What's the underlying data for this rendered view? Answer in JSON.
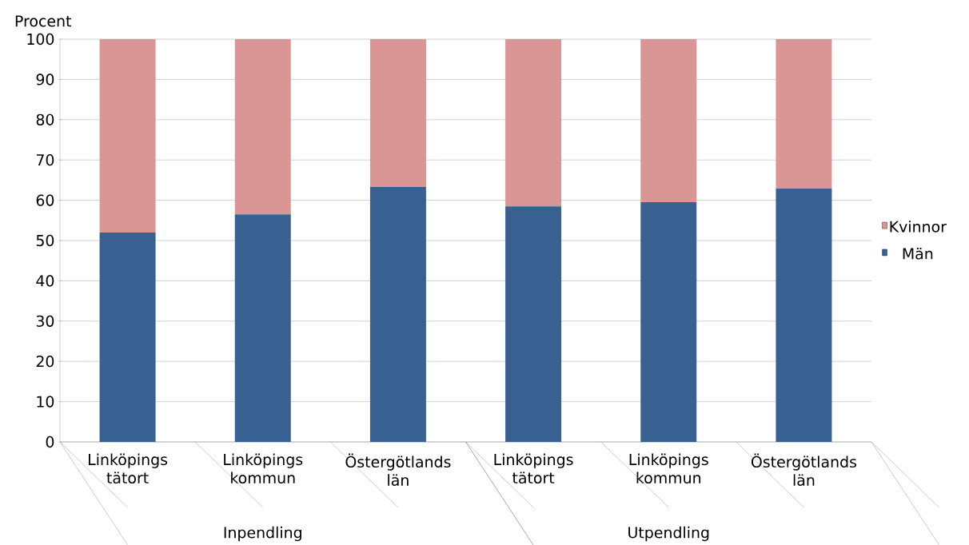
{
  "chart_data": {
    "type": "bar",
    "stacked": true,
    "ylabel": "Procent",
    "categories": [
      "Linköpings tätort",
      "Linköpings kommun",
      "Östergötlands län",
      "Linköpings tätort",
      "Linköpings kommun",
      "Östergötlands län"
    ],
    "series": [
      {
        "name": "Män",
        "color": "#386192",
        "values": [
          52,
          56.5,
          63.3,
          58.5,
          59.5,
          62.9
        ]
      },
      {
        "name": "Kvinnor",
        "color": "#d99694",
        "values": [
          48,
          43.5,
          36.7,
          41.5,
          40.5,
          37.1
        ]
      }
    ],
    "ylim": [
      0,
      100
    ],
    "yticks": [
      0,
      10,
      20,
      30,
      40,
      50,
      60,
      70,
      80,
      90,
      100
    ],
    "grid": "y",
    "legend": "right",
    "annotations": [
      "Inpendling",
      "Utpendling"
    ]
  }
}
